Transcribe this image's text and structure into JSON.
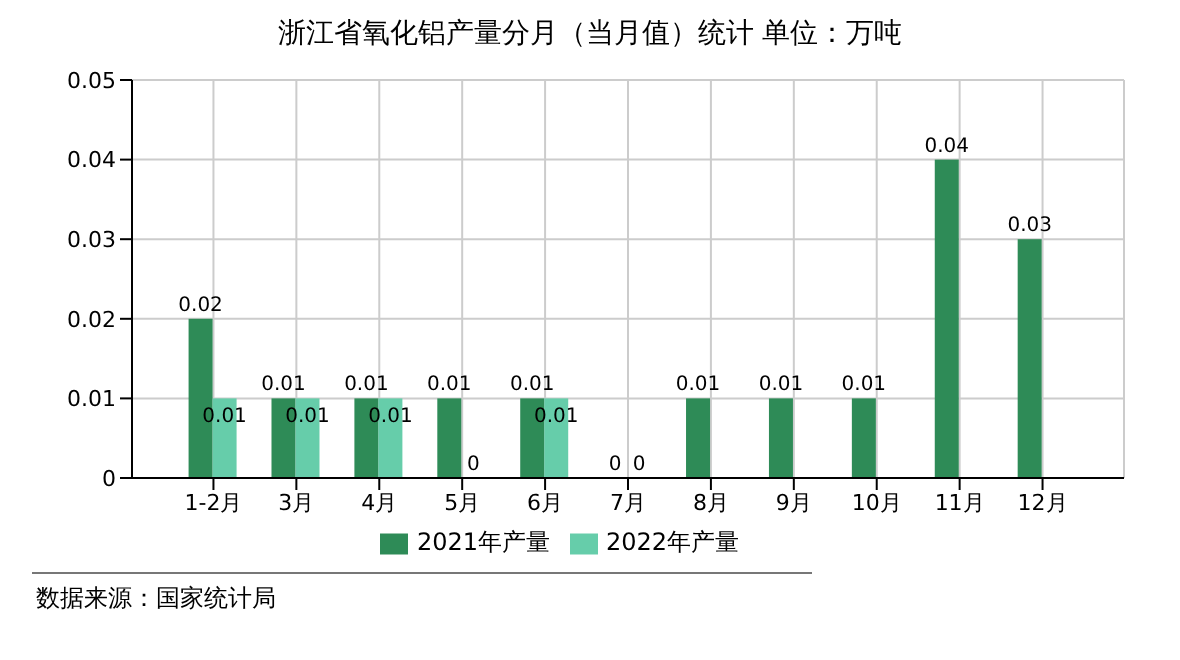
{
  "chart_data": {
    "type": "bar",
    "title": "浙江省氧化铝产量分月（当月值）统计 单位：万吨",
    "categories": [
      "1-2月",
      "3月",
      "4月",
      "5月",
      "6月",
      "7月",
      "8月",
      "9月",
      "10月",
      "11月",
      "12月"
    ],
    "series": [
      {
        "name": "2021年产量",
        "color": "#2e8b57",
        "values": [
          0.02,
          0.01,
          0.01,
          0.01,
          0.01,
          0,
          0.01,
          0.01,
          0.01,
          0.04,
          0.03
        ]
      },
      {
        "name": "2022年产量",
        "color": "#66cdaa",
        "values": [
          0.01,
          0.01,
          0.01,
          0,
          0.01,
          0,
          null,
          null,
          null,
          null,
          null
        ]
      }
    ],
    "ylim": [
      0,
      0.05
    ],
    "yticks": [
      0,
      0.01,
      0.02,
      0.03,
      0.04,
      0.05
    ],
    "grid": true,
    "legend": "bottom",
    "data_labels": true,
    "annotations": [
      "数据来源：国家统计局"
    ]
  }
}
